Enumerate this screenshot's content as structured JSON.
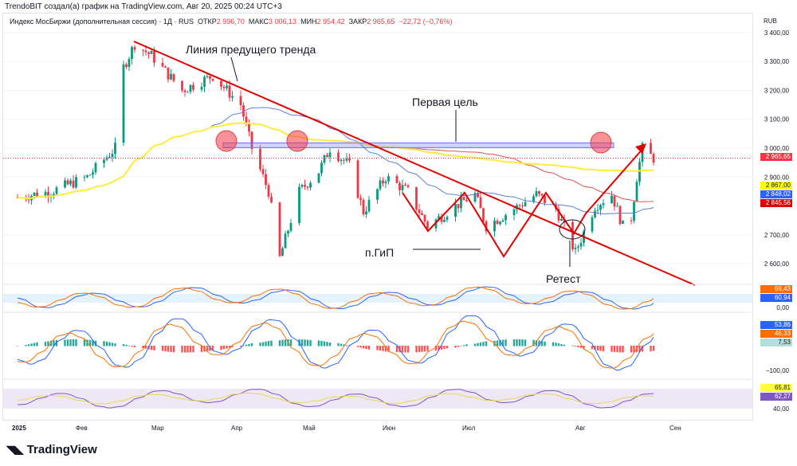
{
  "header": {
    "caption": "TrendoBIT создал(а) график на TradingView.com, Авг 20, 2025 00:24 UTC+3"
  },
  "legend": {
    "symbol": "Индекс МосБиржи (дополнительная сессия) · 1Д · RUS",
    "open_label": "ОТКР",
    "open": "2 996,70",
    "high_label": "МАКС",
    "high": "3 006,13",
    "low_label": "МИН",
    "low": "2 954,42",
    "close_label": "ЗАКР",
    "close": "2 965,65",
    "change": "−22,72 (−0,76%)"
  },
  "currency": "RUB",
  "price_tags": [
    {
      "value": "2 965,65",
      "color": "#f23645"
    },
    {
      "value": "2 867,00",
      "color": "#ffff00",
      "text": "#131722"
    },
    {
      "value": "2 848,02",
      "color": "#2962ff"
    },
    {
      "value": "2 845,56",
      "color": "#e00000"
    }
  ],
  "pane_tags": [
    {
      "value": "68,43",
      "color": "#ff6d00"
    },
    {
      "value": "60,94",
      "color": "#2962ff"
    },
    {
      "value": "53,86",
      "color": "#2962ff"
    },
    {
      "value": "46,33",
      "color": "#ff6d00"
    },
    {
      "value": "7,53",
      "color": "#b2dfdb",
      "text": "#131722"
    },
    {
      "value": "65,81",
      "color": "#ffff3b",
      "text": "#131722"
    },
    {
      "value": "62,27",
      "color": "#7e57c2"
    }
  ],
  "pane_axis": [
    "0,00",
    "−100,00",
    "40,00"
  ],
  "annotations": {
    "trend_line": "Линия предущего тренда",
    "target": "Первая цель",
    "pattern": "п.ГиП",
    "retest": "Ретест"
  },
  "footer": {
    "brand": "TradingView"
  },
  "chart_data": {
    "type": "candlestick",
    "ylim": [
      2580,
      3420
    ],
    "y_ticks": [
      "3 400,00",
      "3 300,00",
      "3 200,00",
      "3 100,00",
      "3 000,00",
      "2 900,00",
      "2 700,00",
      "2 600,00"
    ],
    "y_tick_values": [
      3400,
      3300,
      3200,
      3100,
      3000,
      2900,
      2700,
      2600
    ],
    "x_ticks": [
      "2025",
      "Фев",
      "Мар",
      "Апр",
      "Май",
      "Июн",
      "Июл",
      "Авг",
      "Сен"
    ],
    "approx_close_path": [
      [
        "2025-01-03",
        2830
      ],
      [
        "2025-01-15",
        2850
      ],
      [
        "2025-01-28",
        2900
      ],
      [
        "2025-02-07",
        3000
      ],
      [
        "2025-02-10",
        3280
      ],
      [
        "2025-02-14",
        3360
      ],
      [
        "2025-02-20",
        3320
      ],
      [
        "2025-03-03",
        3200
      ],
      [
        "2025-03-14",
        3250
      ],
      [
        "2025-03-24",
        3150
      ],
      [
        "2025-03-28",
        3000
      ],
      [
        "2025-04-03",
        2850
      ],
      [
        "2025-04-07",
        2620
      ],
      [
        "2025-04-14",
        2850
      ],
      [
        "2025-04-21",
        2920
      ],
      [
        "2025-04-25",
        3000
      ],
      [
        "2025-05-02",
        2940
      ],
      [
        "2025-05-07",
        2780
      ],
      [
        "2025-05-15",
        2900
      ],
      [
        "2025-05-23",
        2850
      ],
      [
        "2025-05-30",
        2730
      ],
      [
        "2025-06-09",
        2800
      ],
      [
        "2025-06-16",
        2840
      ],
      [
        "2025-06-20",
        2730
      ],
      [
        "2025-06-30",
        2790
      ],
      [
        "2025-07-08",
        2840
      ],
      [
        "2025-07-15",
        2790
      ],
      [
        "2025-07-22",
        2640
      ],
      [
        "2025-07-29",
        2800
      ],
      [
        "2025-08-04",
        2840
      ],
      [
        "2025-08-08",
        2730
      ],
      [
        "2025-08-11",
        2760
      ],
      [
        "2025-08-13",
        2900
      ],
      [
        "2025-08-15",
        3000
      ],
      [
        "2025-08-19",
        2965
      ]
    ],
    "resistance_level": 3010,
    "moving_averages": [
      {
        "color": "#ffeb3b",
        "last": 2867.0
      },
      {
        "color": "#5b7fd6",
        "last": 2848.02
      },
      {
        "color": "#e05050",
        "last": 2845.56
      }
    ]
  }
}
